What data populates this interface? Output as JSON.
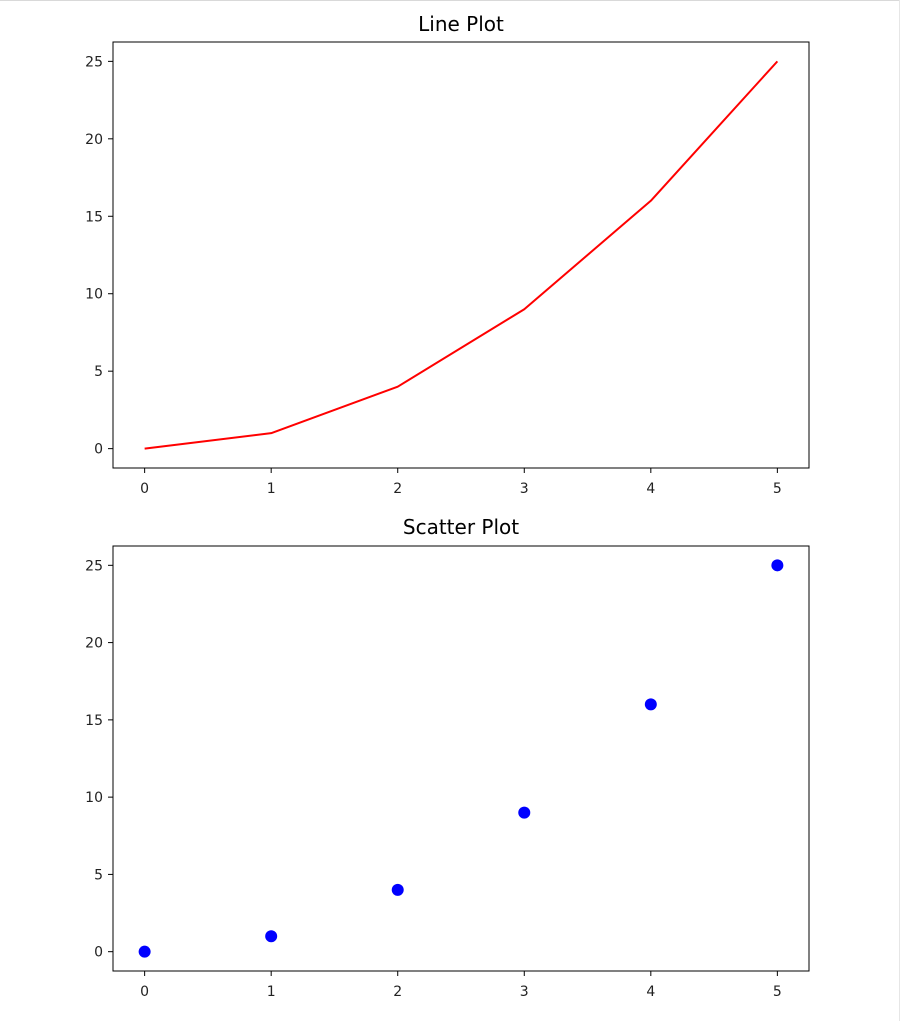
{
  "chart_data": [
    {
      "type": "line",
      "title": "Line Plot",
      "xlabel": "",
      "ylabel": "",
      "x": [
        0,
        1,
        2,
        3,
        4,
        5
      ],
      "series": [
        {
          "values": [
            0,
            1,
            4,
            9,
            16,
            25
          ],
          "color": "#ff0000"
        }
      ],
      "xticks": [
        0,
        1,
        2,
        3,
        4,
        5
      ],
      "yticks": [
        0,
        5,
        10,
        15,
        20,
        25
      ],
      "xlim": [
        -0.25,
        5.25
      ],
      "ylim": [
        -1.25,
        26.25
      ],
      "grid": false,
      "legend": "none"
    },
    {
      "type": "scatter",
      "title": "Scatter Plot",
      "xlabel": "",
      "ylabel": "",
      "x": [
        0,
        1,
        2,
        3,
        4,
        5
      ],
      "series": [
        {
          "values": [
            0,
            1,
            4,
            9,
            16,
            25
          ],
          "color": "#0000ff"
        }
      ],
      "xticks": [
        0,
        1,
        2,
        3,
        4,
        5
      ],
      "yticks": [
        0,
        5,
        10,
        15,
        20,
        25
      ],
      "xlim": [
        -0.25,
        5.25
      ],
      "ylim": [
        -1.25,
        26.25
      ],
      "grid": false,
      "legend": "none"
    }
  ]
}
